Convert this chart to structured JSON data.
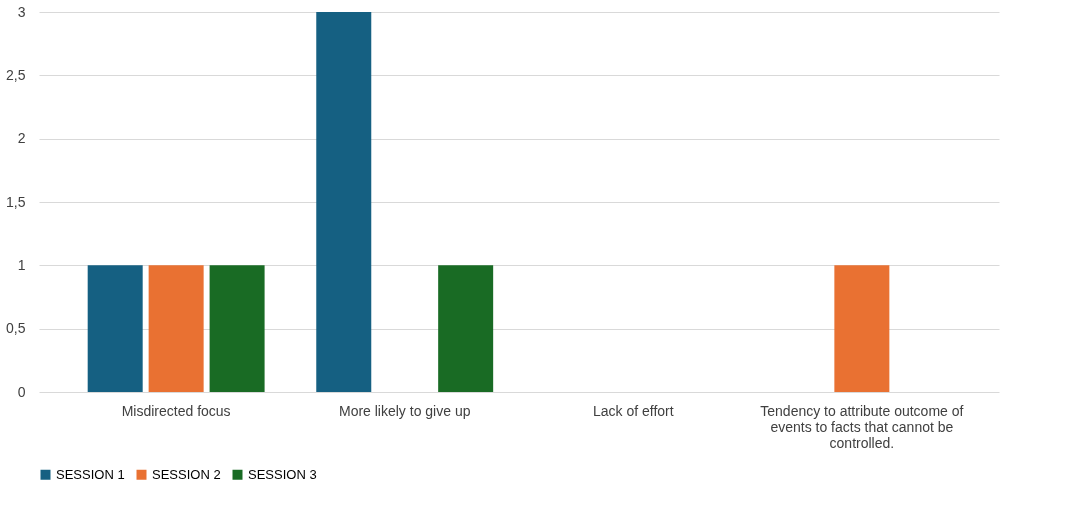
{
  "chart_data": {
    "type": "bar",
    "categories": [
      "Misdirected focus",
      "More likely to give up",
      "Lack of effort",
      "Tendency to attribute outcome of events to facts that cannot be controlled."
    ],
    "series": [
      {
        "name": "SESSION 1",
        "color": "#156082",
        "values": [
          1,
          3,
          0,
          0
        ]
      },
      {
        "name": "SESSION 2",
        "color": "#e97132",
        "values": [
          1,
          0,
          0,
          1
        ]
      },
      {
        "name": "SESSION 3",
        "color": "#196b24",
        "values": [
          1,
          1,
          0,
          0
        ]
      }
    ],
    "ylim": [
      0,
      3
    ],
    "yticks": [
      0,
      {
        "value": 0.5,
        "label": "0,5"
      },
      1,
      {
        "value": 1.5,
        "label": "1,5"
      },
      2,
      {
        "value": 2.5,
        "label": "2,5"
      },
      3
    ],
    "grid": "y",
    "legend": "bottom"
  }
}
